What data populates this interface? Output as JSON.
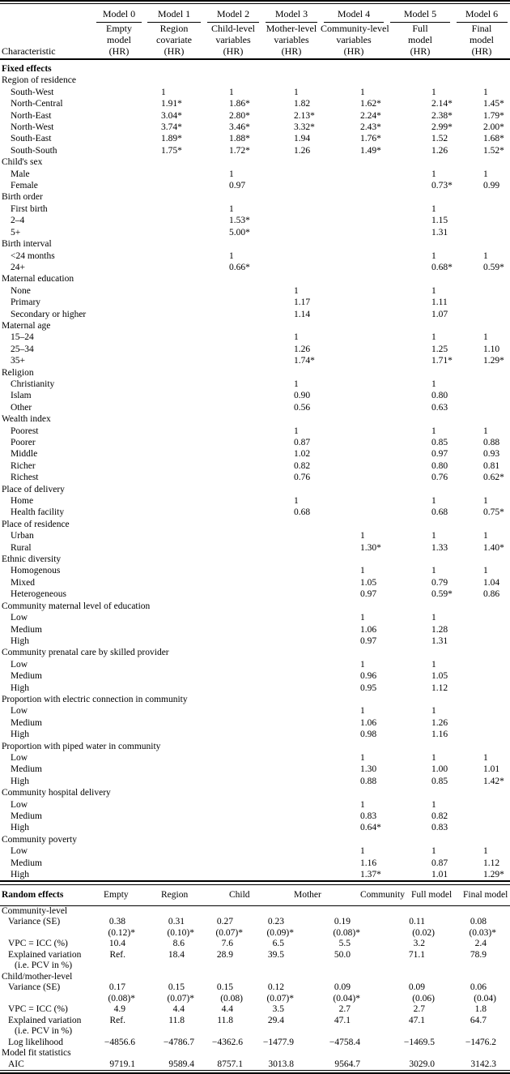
{
  "header": {
    "characteristic_label": "Characteristic",
    "models": [
      {
        "name": "Model 0",
        "subtitle": [
          "Empty",
          "model",
          "(HR)"
        ]
      },
      {
        "name": "Model 1",
        "subtitle": [
          "Region",
          "covariate",
          "(HR)"
        ]
      },
      {
        "name": "Model 2",
        "subtitle": [
          "Child-level",
          "variables",
          "(HR)"
        ]
      },
      {
        "name": "Model 3",
        "subtitle": [
          "Mother-level",
          "variables",
          "(HR)"
        ]
      },
      {
        "name": "Model 4",
        "subtitle": [
          "Community-level",
          "variables",
          "(HR)"
        ]
      },
      {
        "name": "Model 5",
        "subtitle": [
          "Full",
          "model",
          "(HR)"
        ]
      },
      {
        "name": "Model 6",
        "subtitle": [
          "Final",
          "model",
          "(HR)"
        ]
      }
    ]
  },
  "fixed_effects": {
    "section_label": "Fixed effects",
    "groups": [
      {
        "label": "Region of residence",
        "rows": [
          {
            "label": "South-West",
            "values": [
              "",
              "1",
              "1",
              "1",
              "1",
              "1",
              "1"
            ]
          },
          {
            "label": "North-Central",
            "values": [
              "",
              "1.91*",
              "1.86*",
              "1.82",
              "1.62*",
              "2.14*",
              "1.45*"
            ]
          },
          {
            "label": "North-East",
            "values": [
              "",
              "3.04*",
              "2.80*",
              "2.13*",
              "2.24*",
              "2.38*",
              "1.79*"
            ]
          },
          {
            "label": "North-West",
            "values": [
              "",
              "3.74*",
              "3.46*",
              "3.32*",
              "2.43*",
              "2.99*",
              "2.00*"
            ]
          },
          {
            "label": "South-East",
            "values": [
              "",
              "1.89*",
              "1.88*",
              "1.94",
              "1.76*",
              "1.52",
              "1.68*"
            ]
          },
          {
            "label": "South-South",
            "values": [
              "",
              "1.75*",
              "1.72*",
              "1.26",
              "1.49*",
              "1.26",
              "1.52*"
            ]
          }
        ]
      },
      {
        "label": "Child's sex",
        "rows": [
          {
            "label": "Male",
            "values": [
              "",
              "",
              "1",
              "",
              "",
              "1",
              "1"
            ]
          },
          {
            "label": "Female",
            "values": [
              "",
              "",
              "0.97",
              "",
              "",
              "0.73*",
              "0.99"
            ]
          }
        ]
      },
      {
        "label": "Birth order",
        "rows": [
          {
            "label": "First birth",
            "values": [
              "",
              "",
              "1",
              "",
              "",
              "1",
              ""
            ]
          },
          {
            "label": "2–4",
            "values": [
              "",
              "",
              "1.53*",
              "",
              "",
              "1.15",
              ""
            ]
          },
          {
            "label": "5+",
            "values": [
              "",
              "",
              "5.00*",
              "",
              "",
              "1.31",
              ""
            ]
          }
        ]
      },
      {
        "label": "Birth interval",
        "rows": [
          {
            "label": "<24 months",
            "values": [
              "",
              "",
              "1",
              "",
              "",
              "1",
              "1"
            ]
          },
          {
            "label": "24+",
            "values": [
              "",
              "",
              "0.66*",
              "",
              "",
              "0.68*",
              "0.59*"
            ]
          }
        ]
      },
      {
        "label": "Maternal education",
        "rows": [
          {
            "label": "None",
            "values": [
              "",
              "",
              "",
              "1",
              "",
              "1",
              ""
            ]
          },
          {
            "label": "Primary",
            "values": [
              "",
              "",
              "",
              "1.17",
              "",
              "1.11",
              ""
            ]
          },
          {
            "label": "Secondary or higher",
            "values": [
              "",
              "",
              "",
              "1.14",
              "",
              "1.07",
              ""
            ]
          }
        ]
      },
      {
        "label": "Maternal age",
        "rows": [
          {
            "label": "15–24",
            "values": [
              "",
              "",
              "",
              "1",
              "",
              "1",
              "1"
            ]
          },
          {
            "label": "25–34",
            "values": [
              "",
              "",
              "",
              "1.26",
              "",
              "1.25",
              "1.10"
            ]
          },
          {
            "label": "35+",
            "values": [
              "",
              "",
              "",
              "1.74*",
              "",
              "1.71*",
              "1.29*"
            ]
          }
        ]
      },
      {
        "label": "Religion",
        "rows": [
          {
            "label": "Christianity",
            "values": [
              "",
              "",
              "",
              "1",
              "",
              "1",
              ""
            ]
          },
          {
            "label": "Islam",
            "values": [
              "",
              "",
              "",
              "0.90",
              "",
              "0.80",
              ""
            ]
          },
          {
            "label": "Other",
            "values": [
              "",
              "",
              "",
              "0.56",
              "",
              "0.63",
              ""
            ]
          }
        ]
      },
      {
        "label": "Wealth index",
        "rows": [
          {
            "label": "Poorest",
            "values": [
              "",
              "",
              "",
              "1",
              "",
              "1",
              "1"
            ]
          },
          {
            "label": "Poorer",
            "values": [
              "",
              "",
              "",
              "0.87",
              "",
              "0.85",
              "0.88"
            ]
          },
          {
            "label": "Middle",
            "values": [
              "",
              "",
              "",
              "1.02",
              "",
              "0.97",
              "0.93"
            ]
          },
          {
            "label": "Richer",
            "values": [
              "",
              "",
              "",
              "0.82",
              "",
              "0.80",
              "0.81"
            ]
          },
          {
            "label": "Richest",
            "values": [
              "",
              "",
              "",
              "0.76",
              "",
              "0.76",
              "0.62*"
            ]
          }
        ]
      },
      {
        "label": "Place of delivery",
        "rows": [
          {
            "label": "Home",
            "values": [
              "",
              "",
              "",
              "1",
              "",
              "1",
              "1"
            ]
          },
          {
            "label": "Health facility",
            "values": [
              "",
              "",
              "",
              "0.68",
              "",
              "0.68",
              "0.75*"
            ]
          }
        ]
      },
      {
        "label": "Place of residence",
        "rows": [
          {
            "label": "Urban",
            "values": [
              "",
              "",
              "",
              "",
              "1",
              "1",
              "1"
            ]
          },
          {
            "label": "Rural",
            "values": [
              "",
              "",
              "",
              "",
              "1.30*",
              "1.33",
              "1.40*"
            ]
          }
        ]
      },
      {
        "label": "Ethnic diversity",
        "rows": [
          {
            "label": "Homogenous",
            "values": [
              "",
              "",
              "",
              "",
              "1",
              "1",
              "1"
            ]
          },
          {
            "label": "Mixed",
            "values": [
              "",
              "",
              "",
              "",
              "1.05",
              "0.79",
              "1.04"
            ]
          },
          {
            "label": "Heterogeneous",
            "values": [
              "",
              "",
              "",
              "",
              "0.97",
              "0.59*",
              "0.86"
            ]
          }
        ]
      },
      {
        "label": "Community maternal level of education",
        "rows": [
          {
            "label": "Low",
            "values": [
              "",
              "",
              "",
              "",
              "1",
              "1",
              ""
            ]
          },
          {
            "label": "Medium",
            "values": [
              "",
              "",
              "",
              "",
              "1.06",
              "1.28",
              ""
            ]
          },
          {
            "label": "High",
            "values": [
              "",
              "",
              "",
              "",
              "0.97",
              "1.31",
              ""
            ]
          }
        ]
      },
      {
        "label": "Community prenatal care by skilled provider",
        "rows": [
          {
            "label": "Low",
            "values": [
              "",
              "",
              "",
              "",
              "1",
              "1",
              ""
            ]
          },
          {
            "label": "Medium",
            "values": [
              "",
              "",
              "",
              "",
              "0.96",
              "1.05",
              ""
            ]
          },
          {
            "label": "High",
            "values": [
              "",
              "",
              "",
              "",
              "0.95",
              "1.12",
              ""
            ]
          }
        ]
      },
      {
        "label": "Proportion with electric connection in community",
        "rows": [
          {
            "label": "Low",
            "values": [
              "",
              "",
              "",
              "",
              "1",
              "1",
              ""
            ]
          },
          {
            "label": "Medium",
            "values": [
              "",
              "",
              "",
              "",
              "1.06",
              "1.26",
              ""
            ]
          },
          {
            "label": "High",
            "values": [
              "",
              "",
              "",
              "",
              "0.98",
              "1.16",
              ""
            ]
          }
        ]
      },
      {
        "label": "Proportion with piped water in community",
        "rows": [
          {
            "label": "Low",
            "values": [
              "",
              "",
              "",
              "",
              "1",
              "1",
              "1"
            ]
          },
          {
            "label": "Medium",
            "values": [
              "",
              "",
              "",
              "",
              "1.30",
              "1.00",
              "1.01"
            ]
          },
          {
            "label": "High",
            "values": [
              "",
              "",
              "",
              "",
              "0.88",
              "0.85",
              "1.42*"
            ]
          }
        ]
      },
      {
        "label": "Community hospital delivery",
        "rows": [
          {
            "label": "Low",
            "values": [
              "",
              "",
              "",
              "",
              "1",
              "1",
              ""
            ]
          },
          {
            "label": "Medium",
            "values": [
              "",
              "",
              "",
              "",
              "0.83",
              "0.82",
              ""
            ]
          },
          {
            "label": "High",
            "values": [
              "",
              "",
              "",
              "",
              "0.64*",
              "0.83",
              ""
            ]
          }
        ]
      },
      {
        "label": "Community poverty",
        "rows": [
          {
            "label": "Low",
            "values": [
              "",
              "",
              "",
              "",
              "1",
              "1",
              "1"
            ]
          },
          {
            "label": "Medium",
            "values": [
              "",
              "",
              "",
              "",
              "1.16",
              "0.87",
              "1.12"
            ]
          },
          {
            "label": "High",
            "values": [
              "",
              "",
              "",
              "",
              "1.37*",
              "1.01",
              "1.29*"
            ]
          }
        ]
      }
    ]
  },
  "random_effects": {
    "section_label": "Random effects",
    "column_labels": [
      "Empty",
      "Region",
      "Child",
      "Mother",
      "Community",
      "Full model",
      "Final model"
    ],
    "groups": [
      {
        "label": "Community-level",
        "rows": [
          {
            "label": "Variance (SE)",
            "values": [
              "0.38",
              "0.31",
              "0.27",
              "0.23",
              "0.19",
              "0.11",
              "0.08"
            ],
            "se": [
              "(0.12)*",
              "(0.10)*",
              "(0.07)*",
              "(0.09)*",
              "(0.08)*",
              "(0.02)",
              "(0.03)*"
            ]
          },
          {
            "label": "VPC = ICC (%)",
            "values": [
              "10.4",
              "8.6",
              "7.6",
              "6.5",
              "5.5",
              "3.2",
              "2.4"
            ]
          },
          {
            "label": "Explained variation",
            "sublabel": "(i.e. PCV in %)",
            "values": [
              "Ref.",
              "18.4",
              "28.9",
              "39.5",
              "50.0",
              "71.1",
              "78.9"
            ]
          }
        ]
      },
      {
        "label": "Child/mother-level",
        "rows": [
          {
            "label": "Variance (SE)",
            "values": [
              "0.17",
              "0.15",
              "0.15",
              "0.12",
              "0.09",
              "0.09",
              "0.06"
            ],
            "se": [
              "(0.08)*",
              "(0.07)*",
              "(0.08)",
              "(0.07)*",
              "(0.04)*",
              "(0.06)",
              "(0.04)"
            ]
          },
          {
            "label": "VPC = ICC (%)",
            "values": [
              "4.9",
              "4.4",
              "4.4",
              "3.5",
              "2.7",
              "2.7",
              "1.8"
            ]
          },
          {
            "label": "Explained variation",
            "sublabel": "(i.e. PCV in %)",
            "values": [
              "Ref.",
              "11.8",
              "11.8",
              "29.4",
              "47.1",
              "47.1",
              "64.7"
            ]
          },
          {
            "label": "Log likelihood",
            "values": [
              "−4856.6",
              "−4786.7",
              "−4362.6",
              "−1477.9",
              "−4758.4",
              "−1469.5",
              "−1476.2"
            ]
          }
        ]
      },
      {
        "label": "Model fit statistics",
        "rows": [
          {
            "label": "AIC",
            "values": [
              "9719.1",
              "9589.4",
              "8757.1",
              "3013.8",
              "9564.7",
              "3029.0",
              "3142.3"
            ]
          }
        ]
      }
    ]
  }
}
